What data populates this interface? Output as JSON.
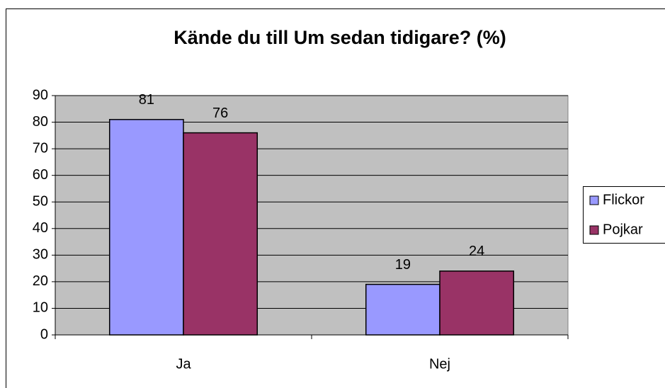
{
  "chart_data": {
    "type": "bar",
    "title": "Kände du till Um sedan tidigare? (%)",
    "categories": [
      "Ja",
      "Nej"
    ],
    "series": [
      {
        "name": "Flickor",
        "color": "#9999ff",
        "values": [
          81,
          19
        ]
      },
      {
        "name": "Pojkar",
        "color": "#993366",
        "values": [
          76,
          24
        ]
      }
    ],
    "ylim": [
      0,
      90
    ],
    "yticks": [
      0,
      10,
      20,
      30,
      40,
      50,
      60,
      70,
      80,
      90
    ],
    "grid": true,
    "legend": "right"
  }
}
